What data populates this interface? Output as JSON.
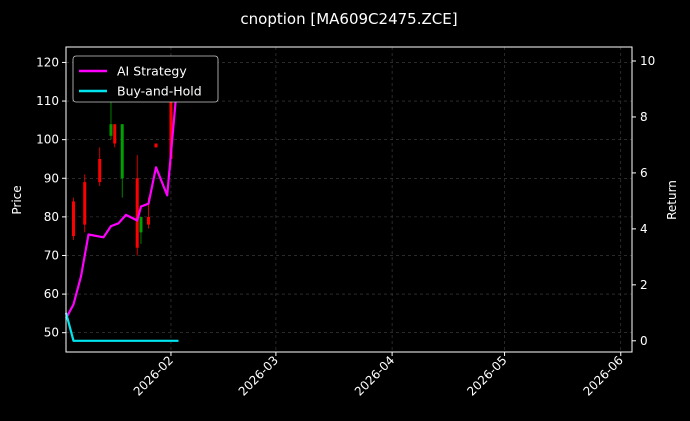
{
  "chart_data": {
    "type": "line",
    "title": "cnoption [MA609C2475.ZCE]",
    "ylabel": "Price",
    "y2label": "Return",
    "xlim": [
      "2026-01-04",
      "2026-06-04"
    ],
    "ylim": [
      45,
      124
    ],
    "y2lim": [
      -0.4,
      10.5
    ],
    "x_ticks": [
      "2026-02-01",
      "2026-03-01",
      "2026-04-01",
      "2026-05-01",
      "2026-06-01"
    ],
    "x_tick_labels": [
      "2026-02",
      "2026-03",
      "2026-04",
      "2026-05",
      "2026-06"
    ],
    "y_ticks": [
      50,
      60,
      70,
      80,
      90,
      100,
      110,
      120
    ],
    "y2_ticks": [
      0,
      2,
      4,
      6,
      8,
      10
    ],
    "grid": true,
    "legend_position": "upper-left",
    "colors": {
      "background": "#000000",
      "ai_strategy": "#ff00ff",
      "buy_and_hold": "#00e5ee",
      "candle_up": "#ff0000",
      "candle_down": "#00a000",
      "grid": "#444444",
      "axes": "#ffffff"
    },
    "series": [
      {
        "name": "AI Strategy",
        "axis": "return",
        "points": [
          [
            "2026-01-04",
            0.8
          ],
          [
            "2026-01-06",
            1.3
          ],
          [
            "2026-01-08",
            2.3
          ],
          [
            "2026-01-10",
            3.8
          ],
          [
            "2026-01-14",
            3.7
          ],
          [
            "2026-01-16",
            4.1
          ],
          [
            "2026-01-18",
            4.2
          ],
          [
            "2026-01-20",
            4.5
          ],
          [
            "2026-01-23",
            4.3
          ],
          [
            "2026-01-24",
            4.8
          ],
          [
            "2026-01-26",
            4.9
          ],
          [
            "2026-01-28",
            6.2
          ],
          [
            "2026-01-31",
            5.2
          ],
          [
            "2026-02-03",
            9.7
          ]
        ]
      },
      {
        "name": "Buy-and-Hold",
        "axis": "return",
        "points": [
          [
            "2026-01-04",
            1.0
          ],
          [
            "2026-01-06",
            0.0
          ],
          [
            "2026-02-03",
            0.0
          ]
        ]
      }
    ],
    "candles": [
      {
        "date": "2026-01-06",
        "open": 75,
        "close": 84,
        "low": 74,
        "high": 85,
        "dir": "up"
      },
      {
        "date": "2026-01-09",
        "open": 78,
        "close": 89,
        "low": 76,
        "high": 91,
        "dir": "up"
      },
      {
        "date": "2026-01-13",
        "open": 89,
        "close": 95,
        "low": 88,
        "high": 98,
        "dir": "up"
      },
      {
        "date": "2026-01-16",
        "open": 104,
        "close": 101,
        "low": 100,
        "high": 112,
        "dir": "down"
      },
      {
        "date": "2026-01-17",
        "open": 99,
        "close": 104,
        "low": 98,
        "high": 104,
        "dir": "up"
      },
      {
        "date": "2026-01-19",
        "open": 104,
        "close": 90,
        "low": 85,
        "high": 104,
        "dir": "down"
      },
      {
        "date": "2026-01-23",
        "open": 72,
        "close": 90,
        "low": 70,
        "high": 96,
        "dir": "up"
      },
      {
        "date": "2026-01-24",
        "open": 80,
        "close": 76,
        "low": 73,
        "high": 80,
        "dir": "down"
      },
      {
        "date": "2026-01-26",
        "open": 78,
        "close": 80,
        "low": 77,
        "high": 85,
        "dir": "up"
      },
      {
        "date": "2026-01-28",
        "open": 98,
        "close": 99,
        "low": 98,
        "high": 99,
        "dir": "up"
      },
      {
        "date": "2026-02-01",
        "open": 95,
        "close": 115,
        "low": 93,
        "high": 118,
        "dir": "up"
      }
    ]
  }
}
